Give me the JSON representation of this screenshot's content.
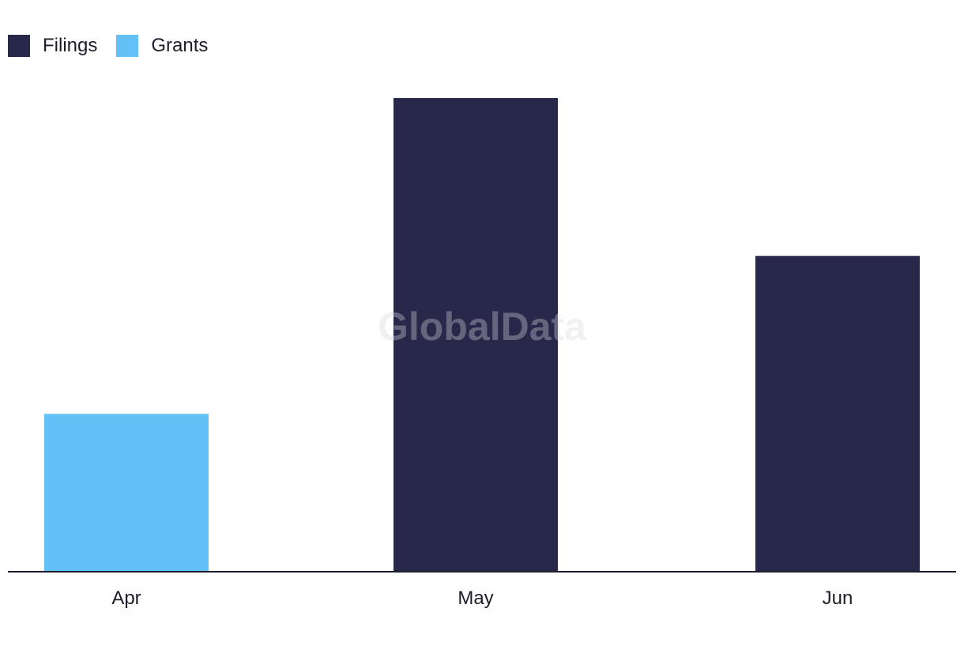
{
  "legend": {
    "items": [
      {
        "label": "Filings",
        "color": "#28284b"
      },
      {
        "label": "Grants",
        "color": "#63c1f8"
      }
    ]
  },
  "watermark": "GlobalData",
  "chart_data": {
    "type": "bar",
    "categories": [
      "Apr",
      "May",
      "Jun"
    ],
    "values": [
      1,
      3,
      2
    ],
    "series_of_bar": [
      "Grants",
      "Filings",
      "Filings"
    ],
    "colors": {
      "Filings": "#28284b",
      "Grants": "#63c1f8"
    },
    "ylim": [
      0,
      3
    ],
    "grid": false,
    "legend_position": "top-left",
    "title": "",
    "xlabel": "",
    "ylabel": ""
  }
}
